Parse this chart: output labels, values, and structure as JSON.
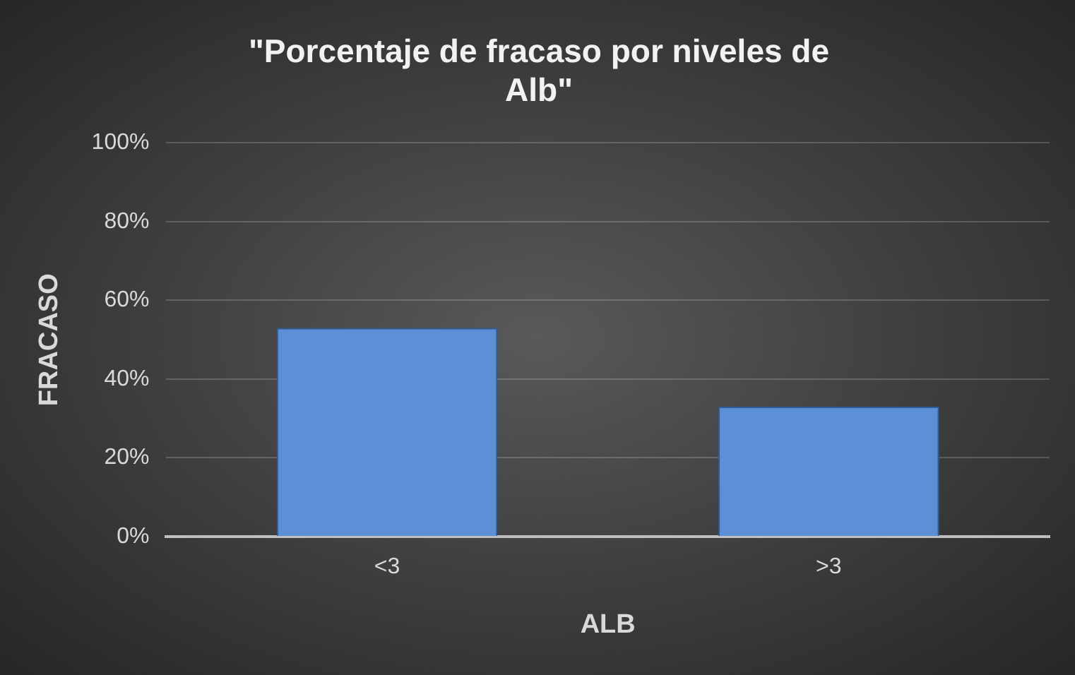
{
  "chart_data": {
    "type": "bar",
    "title": "\"Porcentaje de fracaso por niveles de Alb\"",
    "xlabel": "ALB",
    "ylabel": "FRACASO",
    "categories": [
      "<3",
      ">3"
    ],
    "values": [
      53,
      33
    ],
    "color": "#5b8fd6",
    "ylim": [
      0,
      100
    ],
    "yticks": [
      {
        "value": 0,
        "label": "0%"
      },
      {
        "value": 20,
        "label": "20%"
      },
      {
        "value": 40,
        "label": "40%"
      },
      {
        "value": 60,
        "label": "60%"
      },
      {
        "value": 80,
        "label": "80%"
      },
      {
        "value": 100,
        "label": "100%"
      }
    ],
    "grid": "y",
    "legend": false
  }
}
